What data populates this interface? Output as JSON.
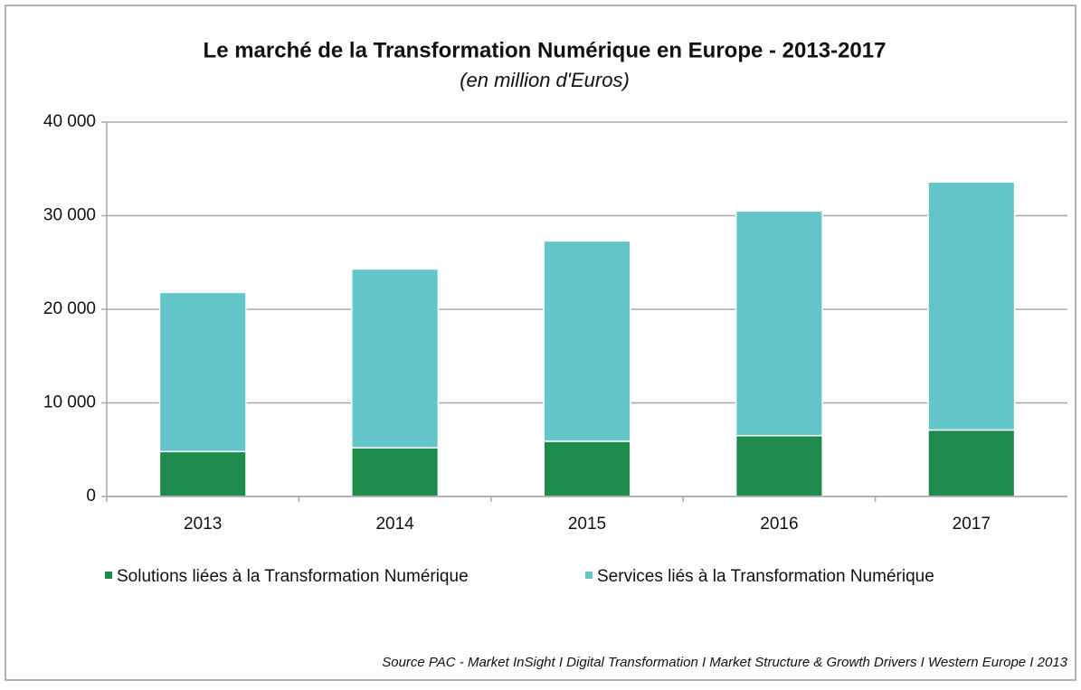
{
  "chart_data": {
    "type": "bar",
    "stacked": true,
    "title": "Le marché de la Transformation Numérique en Europe - 2013-2017",
    "subtitle": "(en million d'Euros)",
    "source": "Source PAC - Market InSight I Digital Transformation I Market Structure & Growth Drivers I Western Europe I 2013",
    "categories": [
      "2013",
      "2014",
      "2015",
      "2016",
      "2017"
    ],
    "series": [
      {
        "name": "Solutions liées à la Transformation Numérique",
        "color": "#1e8a4c",
        "values": [
          4800,
          5200,
          5900,
          6500,
          7100
        ]
      },
      {
        "name": "Services liés à la Transformation Numérique",
        "color": "#63c6c8",
        "values": [
          17000,
          19100,
          21400,
          24000,
          26500
        ]
      }
    ],
    "ylim": [
      0,
      40000
    ],
    "yticks": [
      0,
      {
        "value": 10000,
        "label": "10 000"
      },
      {
        "value": 20000,
        "label": "20 000"
      },
      {
        "value": 30000,
        "label": "30 000"
      },
      {
        "value": 40000,
        "label": "40 000"
      }
    ],
    "grid": true,
    "legend": "bottom"
  }
}
